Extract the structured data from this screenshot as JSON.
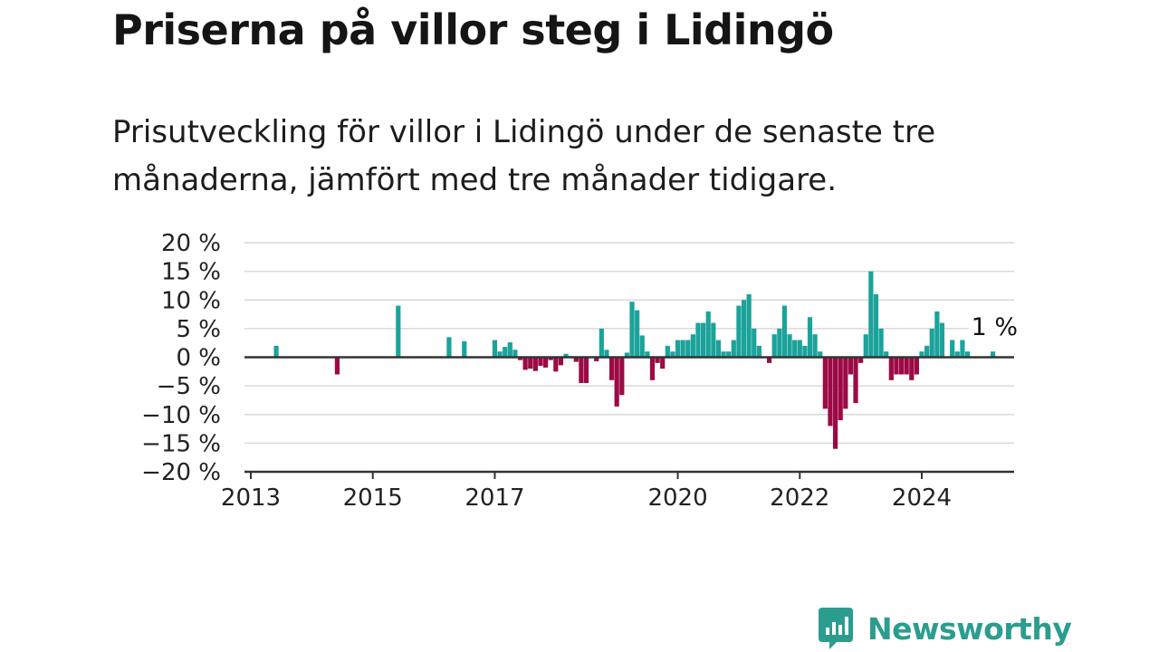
{
  "title": "Priserna på villor steg i Lidingö",
  "subtitle": "Prisutveckling för villor i Lidingö under de senaste tre månaderna, jämfört med tre månader tidigare.",
  "brand": {
    "name": "Newsworthy",
    "icon": "newsworthy-logo-icon"
  },
  "colors": {
    "positive": "#1ba39a",
    "negative": "#9c0a45",
    "grid": "#d9d9d9",
    "axis": "#333333",
    "text": "#222222"
  },
  "chart_data": {
    "type": "bar",
    "title": "",
    "xlabel": "",
    "ylabel": "",
    "ylim": [
      -20,
      20
    ],
    "y_ticks": [
      20,
      15,
      10,
      5,
      0,
      -5,
      -10,
      -15,
      -20
    ],
    "y_tick_labels": [
      "20 %",
      "15 %",
      "10 %",
      "5 %",
      "0 %",
      "−5 %",
      "−10 %",
      "−15 %",
      "−20 %"
    ],
    "x_ticks": [
      "2013-01",
      "2015-01",
      "2017-01",
      "2020-01",
      "2022-01",
      "2024-01"
    ],
    "x_tick_labels": [
      "2013",
      "2015",
      "2017",
      "2020",
      "2022",
      "2024"
    ],
    "grid": true,
    "annotation": {
      "label": "1 %",
      "x": "2025-03",
      "y": 1
    },
    "series": [
      {
        "x": [
          "2013-06",
          "2014-06",
          "2015-06",
          "2016-04",
          "2016-07",
          "2017-01",
          "2017-02",
          "2017-03",
          "2017-04",
          "2017-05",
          "2017-06",
          "2017-07",
          "2017-08",
          "2017-09",
          "2017-10",
          "2017-11",
          "2017-12",
          "2018-01",
          "2018-02",
          "2018-03",
          "2018-04",
          "2018-05",
          "2018-06",
          "2018-07",
          "2018-08",
          "2018-09",
          "2018-10",
          "2018-11",
          "2018-12",
          "2019-01",
          "2019-02",
          "2019-03",
          "2019-04",
          "2019-05",
          "2019-06",
          "2019-07",
          "2019-08",
          "2019-09",
          "2019-10",
          "2019-11",
          "2019-12",
          "2020-01",
          "2020-02",
          "2020-03",
          "2020-04",
          "2020-05",
          "2020-06",
          "2020-07",
          "2020-08",
          "2020-09",
          "2020-10",
          "2020-11",
          "2020-12",
          "2021-01",
          "2021-02",
          "2021-03",
          "2021-04",
          "2021-05",
          "2021-06",
          "2021-07",
          "2021-08",
          "2021-09",
          "2021-10",
          "2021-11",
          "2021-12",
          "2022-01",
          "2022-02",
          "2022-03",
          "2022-04",
          "2022-05",
          "2022-06",
          "2022-07",
          "2022-08",
          "2022-09",
          "2022-10",
          "2022-11",
          "2022-12",
          "2023-01",
          "2023-02",
          "2023-03",
          "2023-04",
          "2023-05",
          "2023-06",
          "2023-07",
          "2023-08",
          "2023-09",
          "2023-10",
          "2023-11",
          "2023-12",
          "2024-01",
          "2024-02",
          "2024-03",
          "2024-04",
          "2024-05",
          "2024-06",
          "2024-07",
          "2024-08",
          "2024-09",
          "2024-10",
          "2024-11",
          "2024-12",
          "2025-01",
          "2025-02",
          "2025-03"
        ],
        "values": [
          2,
          -3,
          9,
          3.5,
          2.8,
          3,
          1,
          1.8,
          2.6,
          1.3,
          -0.5,
          -2.2,
          -2,
          -2.4,
          -1.5,
          -1.8,
          -0.5,
          -2.5,
          -1.4,
          0.6,
          0.2,
          -0.8,
          -4.5,
          -4.5,
          0,
          -0.7,
          5,
          1.3,
          -4,
          -8.6,
          -6.6,
          0.8,
          9.7,
          8.2,
          3.8,
          1,
          -4,
          -1,
          -2,
          2,
          1,
          3,
          3,
          3,
          4,
          6,
          6,
          8,
          6,
          3,
          1,
          1,
          3,
          9,
          10,
          11,
          5,
          2,
          0,
          -1,
          4,
          5,
          9,
          4,
          3,
          3,
          2,
          7,
          4,
          1,
          -9,
          -12,
          -16,
          -11,
          -9,
          -3,
          -8,
          -1,
          4,
          15,
          11,
          5,
          1,
          -4,
          -3,
          -3,
          -3,
          -4,
          -3,
          1,
          2,
          5,
          8,
          6,
          0,
          3,
          1,
          3,
          1,
          0,
          0,
          0,
          0,
          1
        ]
      }
    ]
  }
}
